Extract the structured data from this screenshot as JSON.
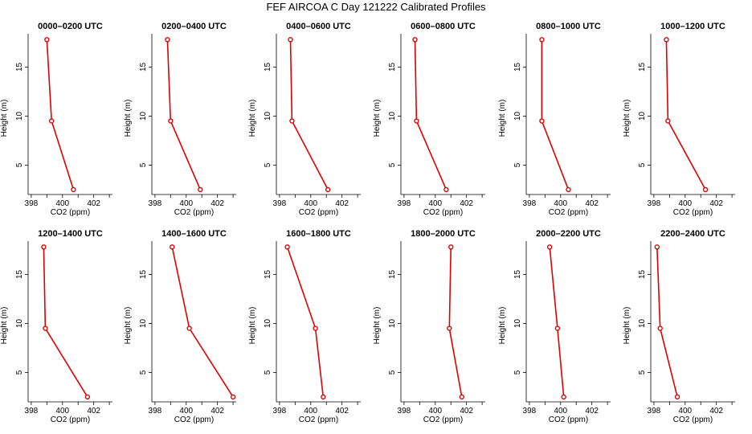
{
  "title": "FEF AIRCOA C  Day 121222  Calibrated Profiles",
  "colors": {
    "line": "#e00000",
    "axis": "#000000"
  },
  "chart_data": {
    "type": "line",
    "xlabel": "CO2 (ppm)",
    "ylabel": "Height (m)",
    "xlim": [
      397.8,
      403.2
    ],
    "ylim": [
      2.0,
      18.4
    ],
    "xticks": [
      398,
      400,
      402
    ],
    "yticks": [
      5,
      10,
      15
    ],
    "heights": [
      17.8,
      9.5,
      2.5
    ],
    "panels": [
      {
        "title": "0000–0200 UTC",
        "co2": [
          399.0,
          399.3,
          400.7
        ]
      },
      {
        "title": "0200–0400 UTC",
        "co2": [
          398.8,
          399.0,
          400.9
        ]
      },
      {
        "title": "0400–0600 UTC",
        "co2": [
          398.7,
          398.8,
          401.1
        ]
      },
      {
        "title": "0600–0800 UTC",
        "co2": [
          398.7,
          398.8,
          400.7
        ]
      },
      {
        "title": "0800–1000 UTC",
        "co2": [
          398.8,
          398.8,
          400.5
        ]
      },
      {
        "title": "1000–1200 UTC",
        "co2": [
          398.8,
          398.9,
          401.3
        ]
      },
      {
        "title": "1200–1400 UTC",
        "co2": [
          398.8,
          398.9,
          401.6
        ]
      },
      {
        "title": "1400–1600 UTC",
        "co2": [
          399.1,
          400.2,
          403.0
        ]
      },
      {
        "title": "1600–1800 UTC",
        "co2": [
          398.5,
          400.3,
          400.8
        ]
      },
      {
        "title": "1800–2000 UTC",
        "co2": [
          401.0,
          400.9,
          401.7
        ]
      },
      {
        "title": "2000–2200 UTC",
        "co2": [
          399.3,
          399.8,
          400.2
        ]
      },
      {
        "title": "2200–2400 UTC",
        "co2": [
          398.2,
          398.4,
          399.5
        ]
      }
    ]
  }
}
